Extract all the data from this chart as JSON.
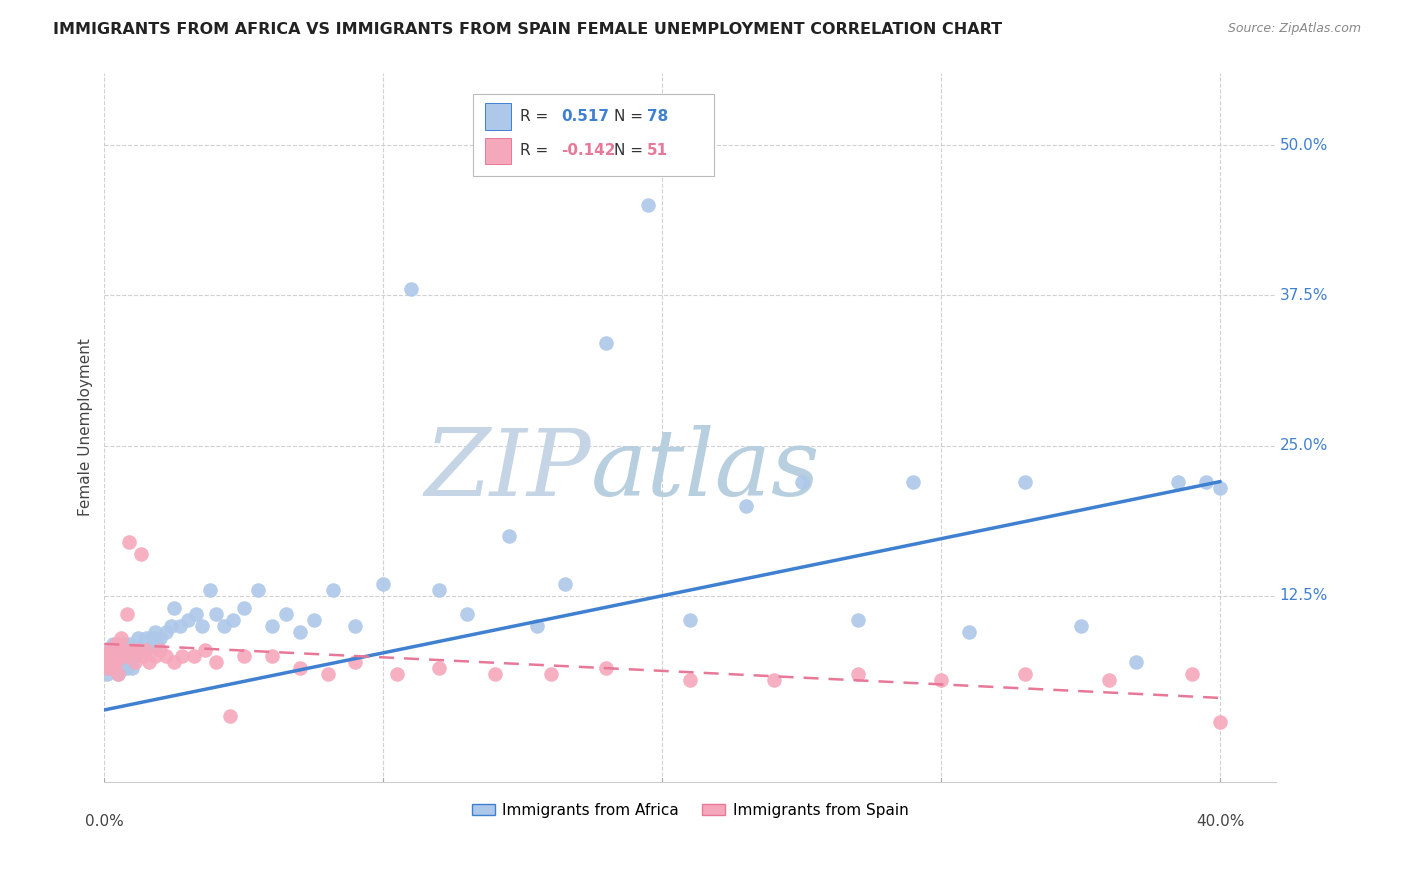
{
  "title": "IMMIGRANTS FROM AFRICA VS IMMIGRANTS FROM SPAIN FEMALE UNEMPLOYMENT CORRELATION CHART",
  "source": "Source: ZipAtlas.com",
  "ylabel": "Female Unemployment",
  "xlim": [
    0.0,
    0.42
  ],
  "ylim": [
    -0.03,
    0.56
  ],
  "ytick_labels": [
    "50.0%",
    "37.5%",
    "25.0%",
    "12.5%"
  ],
  "ytick_vals": [
    0.5,
    0.375,
    0.25,
    0.125
  ],
  "africa_R": 0.517,
  "africa_N": 78,
  "spain_R": -0.142,
  "spain_N": 51,
  "africa_color": "#adc8e8",
  "spain_color": "#f5a8bb",
  "africa_line_color": "#4080d0",
  "spain_line_color": "#e87898",
  "bg_color": "#ffffff",
  "grid_color": "#cccccc",
  "watermark_zip_color": "#c8d8e8",
  "watermark_atlas_color": "#c0d4e8",
  "africa_x": [
    0.001,
    0.001,
    0.002,
    0.002,
    0.002,
    0.003,
    0.003,
    0.003,
    0.004,
    0.004,
    0.004,
    0.005,
    0.005,
    0.005,
    0.005,
    0.006,
    0.006,
    0.006,
    0.007,
    0.007,
    0.007,
    0.008,
    0.008,
    0.009,
    0.009,
    0.01,
    0.01,
    0.011,
    0.012,
    0.012,
    0.013,
    0.014,
    0.015,
    0.016,
    0.017,
    0.018,
    0.019,
    0.02,
    0.022,
    0.024,
    0.025,
    0.027,
    0.03,
    0.033,
    0.035,
    0.038,
    0.04,
    0.043,
    0.046,
    0.05,
    0.055,
    0.06,
    0.065,
    0.07,
    0.075,
    0.082,
    0.09,
    0.1,
    0.11,
    0.12,
    0.13,
    0.145,
    0.155,
    0.165,
    0.18,
    0.195,
    0.21,
    0.23,
    0.25,
    0.27,
    0.29,
    0.31,
    0.33,
    0.35,
    0.37,
    0.385,
    0.395,
    0.4
  ],
  "africa_y": [
    0.06,
    0.075,
    0.065,
    0.08,
    0.07,
    0.065,
    0.075,
    0.085,
    0.065,
    0.075,
    0.08,
    0.06,
    0.07,
    0.075,
    0.08,
    0.065,
    0.075,
    0.08,
    0.065,
    0.075,
    0.085,
    0.065,
    0.08,
    0.07,
    0.085,
    0.065,
    0.08,
    0.075,
    0.08,
    0.09,
    0.08,
    0.085,
    0.09,
    0.085,
    0.09,
    0.095,
    0.085,
    0.09,
    0.095,
    0.1,
    0.115,
    0.1,
    0.105,
    0.11,
    0.1,
    0.13,
    0.11,
    0.1,
    0.105,
    0.115,
    0.13,
    0.1,
    0.11,
    0.095,
    0.105,
    0.13,
    0.1,
    0.135,
    0.38,
    0.13,
    0.11,
    0.175,
    0.1,
    0.135,
    0.335,
    0.45,
    0.105,
    0.2,
    0.22,
    0.105,
    0.22,
    0.095,
    0.22,
    0.1,
    0.07,
    0.22,
    0.22,
    0.215
  ],
  "spain_x": [
    0.001,
    0.001,
    0.002,
    0.002,
    0.003,
    0.003,
    0.004,
    0.004,
    0.005,
    0.005,
    0.005,
    0.006,
    0.006,
    0.007,
    0.008,
    0.008,
    0.009,
    0.01,
    0.011,
    0.012,
    0.013,
    0.014,
    0.015,
    0.016,
    0.018,
    0.02,
    0.022,
    0.025,
    0.028,
    0.032,
    0.036,
    0.04,
    0.045,
    0.05,
    0.06,
    0.07,
    0.08,
    0.09,
    0.105,
    0.12,
    0.14,
    0.16,
    0.18,
    0.21,
    0.24,
    0.27,
    0.3,
    0.33,
    0.36,
    0.39,
    0.4
  ],
  "spain_y": [
    0.065,
    0.07,
    0.075,
    0.08,
    0.065,
    0.08,
    0.07,
    0.085,
    0.06,
    0.075,
    0.085,
    0.075,
    0.09,
    0.08,
    0.075,
    0.11,
    0.17,
    0.08,
    0.07,
    0.08,
    0.16,
    0.075,
    0.08,
    0.07,
    0.075,
    0.08,
    0.075,
    0.07,
    0.075,
    0.075,
    0.08,
    0.07,
    0.025,
    0.075,
    0.075,
    0.065,
    0.06,
    0.07,
    0.06,
    0.065,
    0.06,
    0.06,
    0.065,
    0.055,
    0.055,
    0.06,
    0.055,
    0.06,
    0.055,
    0.06,
    0.02
  ],
  "africa_line_x0": 0.0,
  "africa_line_y0": 0.03,
  "africa_line_x1": 0.4,
  "africa_line_y1": 0.22,
  "spain_line_x0": 0.0,
  "spain_line_y0": 0.085,
  "spain_line_x1": 0.4,
  "spain_line_y1": 0.04
}
